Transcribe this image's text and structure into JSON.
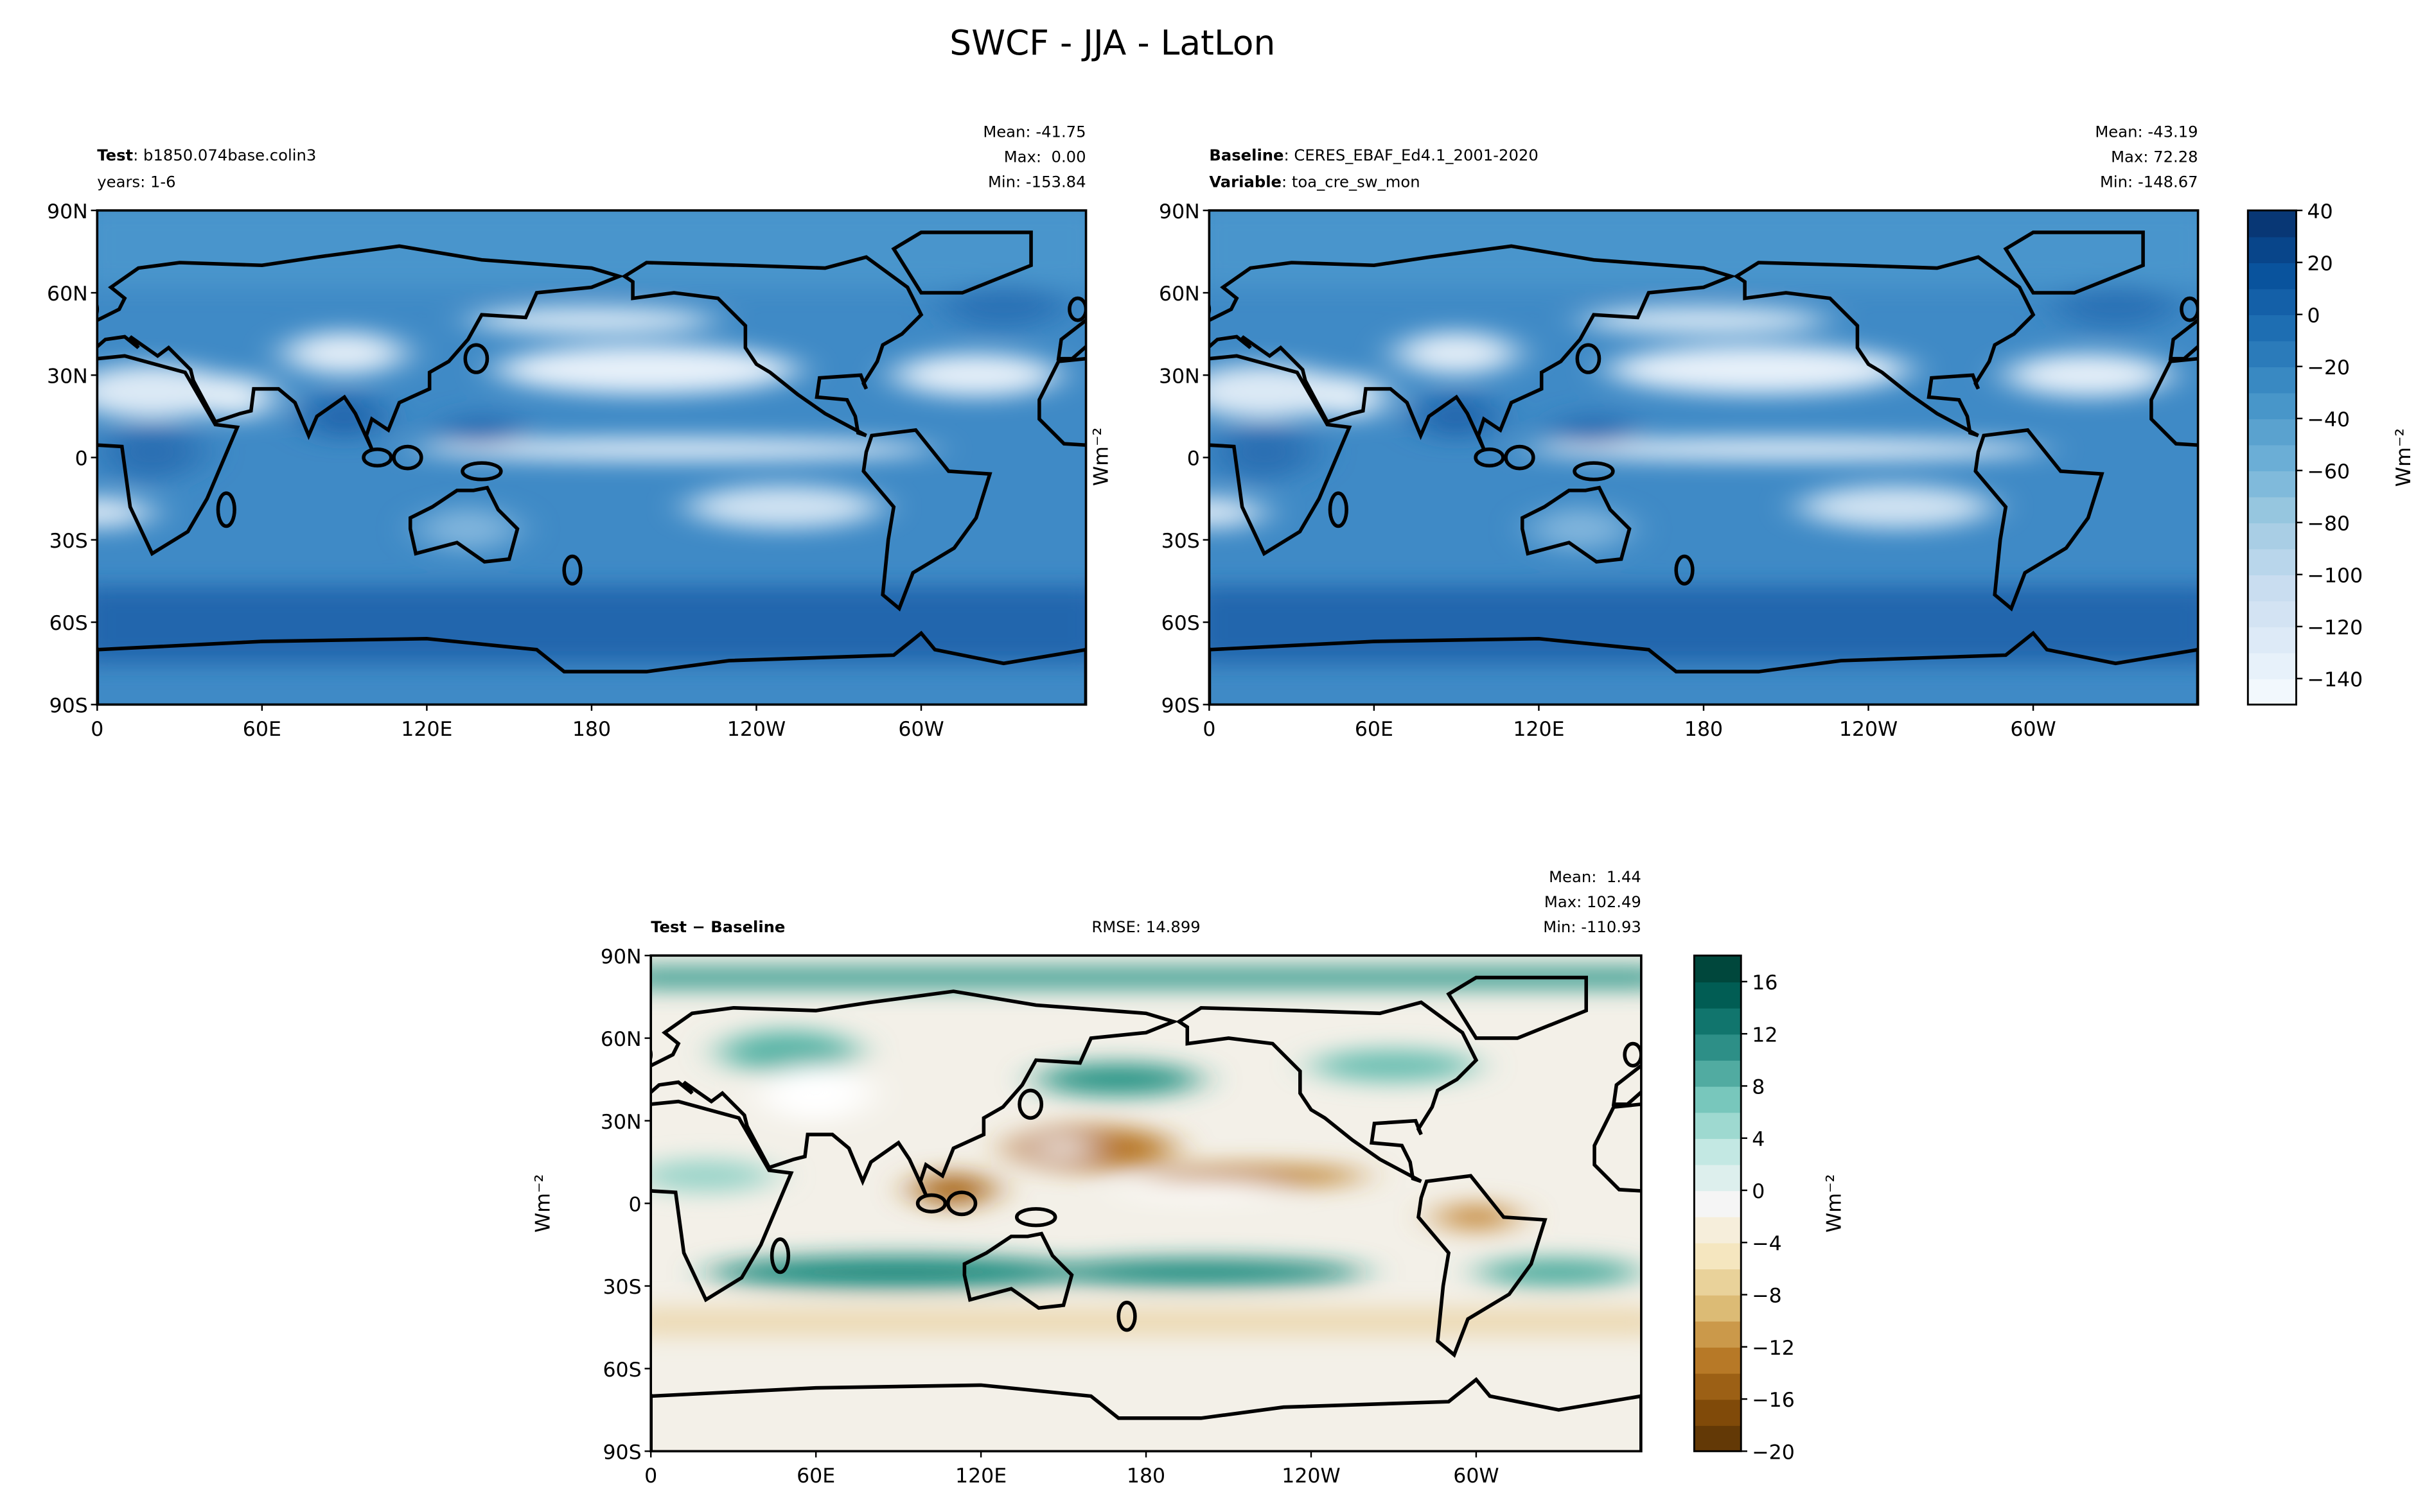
{
  "title": "SWCF - JJA - LatLon",
  "lat_lim": [
    -90,
    90
  ],
  "lon_lim": [
    0,
    360
  ],
  "lat_ticks": [
    {
      "value": 90,
      "label": "90N"
    },
    {
      "value": 60,
      "label": "60N"
    },
    {
      "value": 30,
      "label": "30N"
    },
    0,
    {
      "value": -30,
      "label": "30S"
    },
    {
      "value": -60,
      "label": "60S"
    },
    {
      "value": -90,
      "label": "90S"
    }
  ],
  "lon_ticks": [
    0,
    {
      "value": 60,
      "label": "60E"
    },
    {
      "value": 120,
      "label": "120E"
    },
    180,
    {
      "value": 240,
      "label": "120W"
    },
    {
      "value": 300,
      "label": "60W"
    }
  ],
  "panels": [
    {
      "lines": [
        {
          "key": "Test",
          "value": ": b1850.074base.colin3"
        },
        {
          "value": "years: 1-6"
        }
      ],
      "stats": [
        "Mean: -41.75",
        "Max:  0.00",
        "Min: -153.84"
      ]
    },
    {
      "lines": [
        {
          "key": "Baseline",
          "value": ": CERES_EBAF_Ed4.1_2001-2020"
        },
        {
          "key": "Variable",
          "value": ": toa_cre_sw_mon"
        }
      ],
      "stats": [
        "Mean: -43.19",
        "Max: 72.28",
        "Min: -148.67"
      ],
      "ylabel": "Wm⁻²"
    },
    {
      "lines": [
        {
          "key": "Test − Baseline"
        }
      ],
      "rmse": "RMSE: 14.899",
      "stats": [
        "Mean:  1.44",
        "Max: 102.49",
        "Min: -110.93"
      ],
      "ylabel": "Wm⁻²"
    }
  ],
  "colorbars": [
    {
      "lim": [
        -150,
        40
      ],
      "ticks": [
        40,
        20,
        0,
        {
          "value": -20,
          "label": "−20"
        },
        {
          "value": -40,
          "label": "−40"
        },
        {
          "value": -60,
          "label": "−60"
        },
        {
          "value": -80,
          "label": "−80"
        },
        {
          "value": -100,
          "label": "−100"
        },
        {
          "value": -120,
          "label": "−120"
        },
        {
          "value": -140,
          "label": "−140"
        }
      ],
      "label": "Wm⁻²",
      "cmap": [
        "#f7fbff",
        "#deebf7",
        "#c6dbef",
        "#9ecae1",
        "#6baed6",
        "#4292c6",
        "#2171b5",
        "#08519c",
        "#08306b"
      ]
    },
    {
      "lim": [
        -20,
        18
      ],
      "ticks": [
        16,
        12,
        8,
        4,
        0,
        {
          "value": -4,
          "label": "−4"
        },
        {
          "value": -8,
          "label": "−8"
        },
        {
          "value": -12,
          "label": "−12"
        },
        {
          "value": -16,
          "label": "−16"
        },
        {
          "value": -20,
          "label": "−20"
        }
      ],
      "label": "Wm⁻²",
      "cmap": [
        "#543005",
        "#8c510a",
        "#bf812d",
        "#dfc27d",
        "#f6e8c3",
        "#f5f5f5",
        "#c7eae5",
        "#80cdc1",
        "#35978f",
        "#01665e",
        "#003c30"
      ]
    }
  ]
}
